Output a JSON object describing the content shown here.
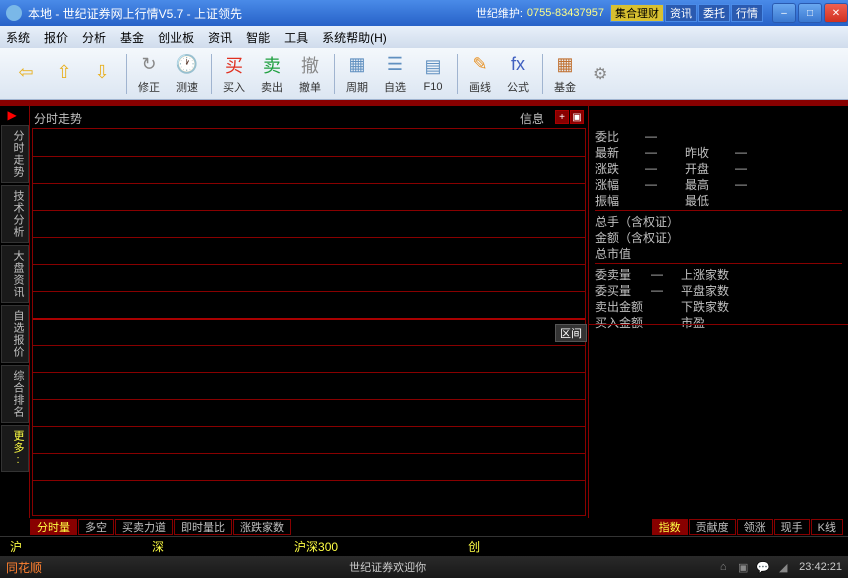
{
  "title": "本地 - 世纪证券网上行情V5.7 - 上证领先",
  "support_label": "世纪维护:",
  "support_phone": "0755-83437957",
  "title_tabs": [
    "集合理财",
    "资讯",
    "委托",
    "行情"
  ],
  "menu": [
    "系统",
    "报价",
    "分析",
    "基金",
    "创业板",
    "资讯",
    "智能",
    "工具",
    "系统帮助(H)"
  ],
  "toolbar": [
    {
      "icon": "⇦",
      "color": "#e8b020",
      "label": ""
    },
    {
      "icon": "⇧",
      "color": "#e8b020",
      "label": ""
    },
    {
      "icon": "⇩",
      "color": "#e8b020",
      "label": ""
    },
    {
      "sep": true
    },
    {
      "icon": "↻",
      "color": "#888",
      "label": "修正"
    },
    {
      "icon": "🕐",
      "color": "#e89020",
      "label": "测速"
    },
    {
      "sep": true
    },
    {
      "icon": "买",
      "color": "#e03020",
      "label": "买入"
    },
    {
      "icon": "卖",
      "color": "#20a040",
      "label": "卖出"
    },
    {
      "icon": "撤",
      "color": "#888",
      "label": "撤单"
    },
    {
      "sep": true
    },
    {
      "icon": "▦",
      "color": "#6090c0",
      "label": "周期"
    },
    {
      "icon": "☰",
      "color": "#6090c0",
      "label": "自选"
    },
    {
      "icon": "▤",
      "color": "#6090c0",
      "label": "F10"
    },
    {
      "sep": true
    },
    {
      "icon": "✎",
      "color": "#e89020",
      "label": "画线"
    },
    {
      "icon": "fx",
      "color": "#4060c0",
      "label": "公式"
    },
    {
      "sep": true
    },
    {
      "icon": "▦",
      "color": "#c07030",
      "label": "基金"
    }
  ],
  "side_tabs": [
    "分时走势",
    "技术分析",
    "大盘资讯",
    "自选报价",
    "综合排名"
  ],
  "side_more": "更多:",
  "chart_title": "分时走势",
  "info_label": "信息",
  "stats_rows": [
    [
      "委比",
      "—",
      "",
      ""
    ],
    [
      "最新",
      "—",
      "昨收",
      "—"
    ],
    [
      "涨跌",
      "—",
      "开盘",
      "—"
    ],
    [
      "涨幅",
      "—",
      "最高",
      "—"
    ],
    [
      "振幅",
      "",
      "最低",
      ""
    ]
  ],
  "stats_rows2": [
    [
      "总手（含权证）",
      "",
      ""
    ],
    [
      "金额（含权证）",
      "",
      ""
    ],
    [
      "总市值",
      "",
      ""
    ]
  ],
  "stats_rows3": [
    [
      "委卖量",
      "—",
      "上涨家数",
      ""
    ],
    [
      "委买量",
      "—",
      "平盘家数",
      ""
    ],
    [
      "卖出金额",
      "",
      "下跌家数",
      ""
    ],
    [
      "买入金额",
      "",
      "市盈",
      ""
    ]
  ],
  "qujian": "区间",
  "bottom_tabs_left": [
    "分时量",
    "多空",
    "买卖力道",
    "即时量比",
    "涨跌家数"
  ],
  "bottom_tabs_right": [
    "指数",
    "贡献度",
    "领涨",
    "现手",
    "K线"
  ],
  "markets": [
    "沪",
    "深",
    "沪深300",
    "创"
  ],
  "status_logo": "同花顺",
  "status_welcome": "世纪证券欢迎你",
  "clock": "23:42:21",
  "colors": {
    "red": "#800000",
    "bg": "#000000",
    "text": "#c0c0c0",
    "yellow": "#ffff40"
  }
}
